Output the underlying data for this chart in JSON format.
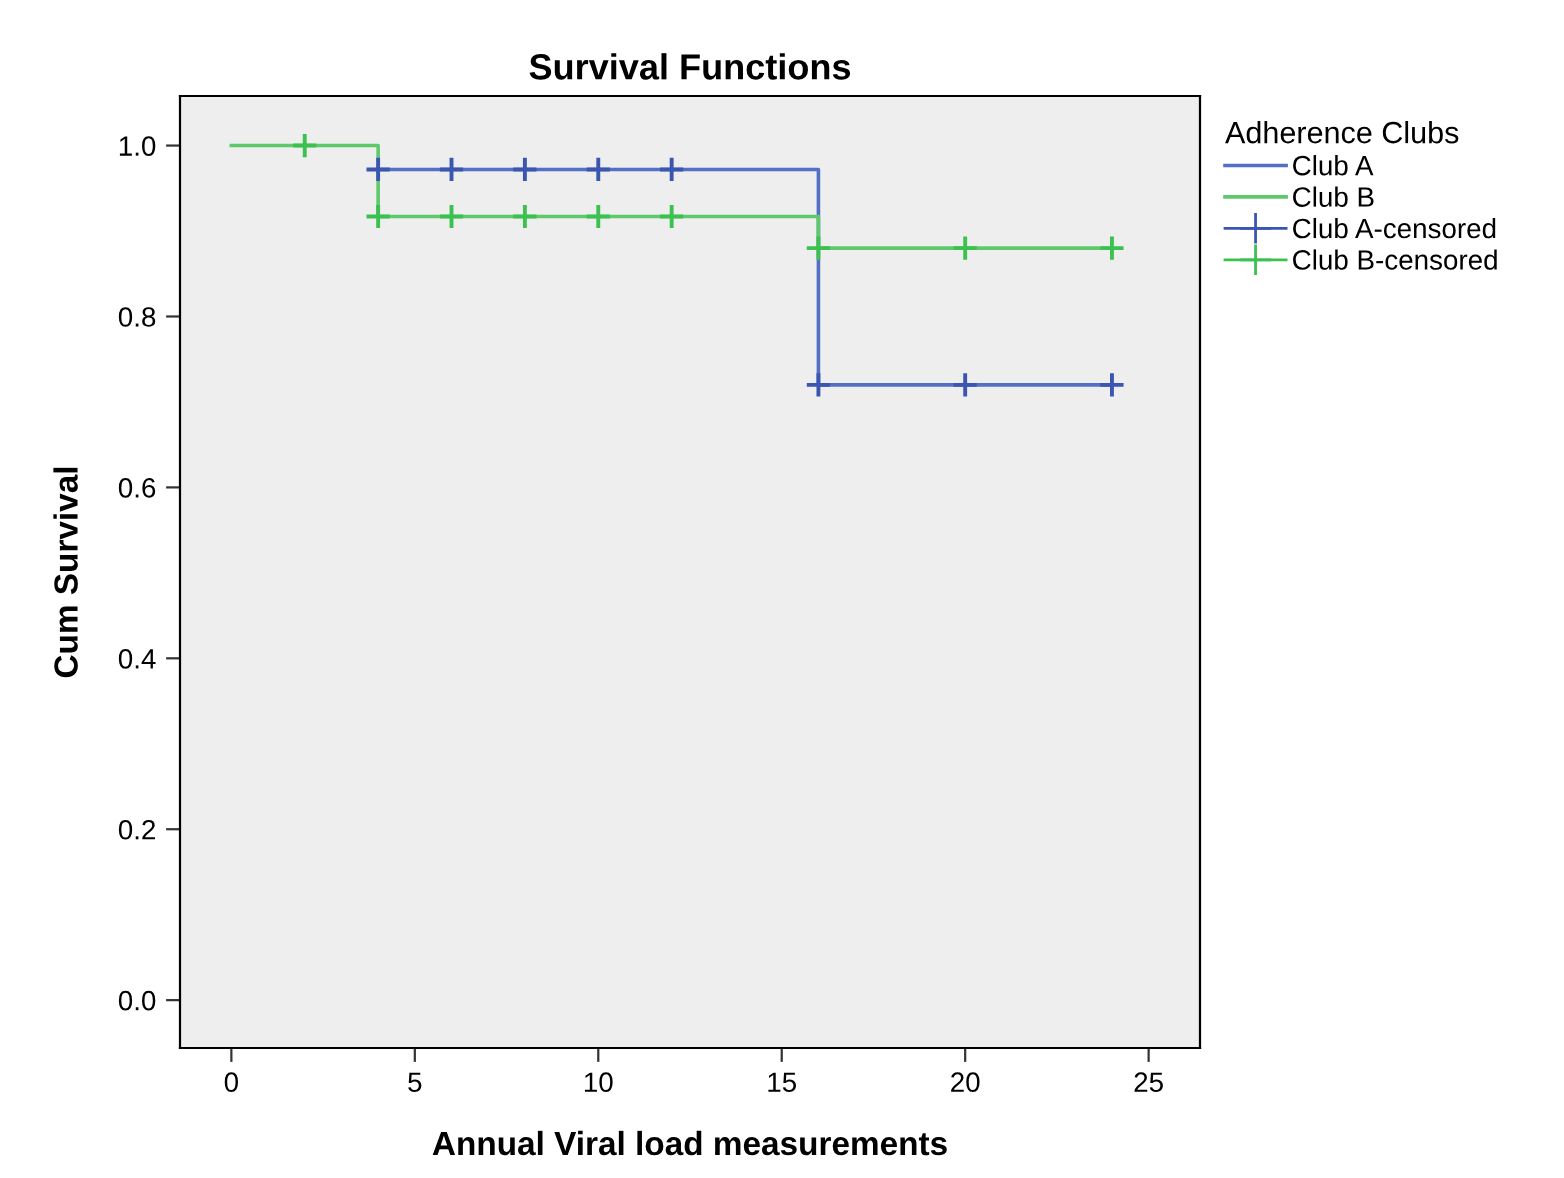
{
  "chart_data": {
    "type": "step",
    "title": "Survival Functions",
    "xlabel": "Annual Viral load measurements",
    "ylabel": "Cum Survival",
    "legend_title": "Adherence Clubs",
    "legend": "right",
    "grid": false,
    "xlim": [
      -1.4,
      26.4
    ],
    "xticks": [
      0,
      5,
      10,
      15,
      20,
      25
    ],
    "ylim": [
      -0.056,
      1.058
    ],
    "yticks": [
      {
        "value": 0,
        "label": "0.0"
      },
      {
        "value": 0.2,
        "label": "0.2"
      },
      {
        "value": 0.4,
        "label": "0.4"
      },
      {
        "value": 0.6,
        "label": "0.6"
      },
      {
        "value": 0.8,
        "label": "0.8"
      },
      {
        "value": 1,
        "label": "1.0"
      }
    ],
    "series": [
      {
        "name": "Club A",
        "color": "#5470c6",
        "x": [
          4,
          16,
          24
        ],
        "values": [
          0.972,
          0.72,
          0.72
        ]
      },
      {
        "name": "Club B",
        "color": "#5ec96b",
        "x": [
          0,
          4,
          16,
          24
        ],
        "values": [
          1.0,
          0.917,
          0.88,
          0.88
        ]
      },
      {
        "name": "Club A-censored",
        "type": "scatter",
        "marker": "cross",
        "color": "#3a56b0",
        "x": [
          4,
          6,
          8,
          10,
          12,
          16,
          20,
          24
        ],
        "values": [
          0.972,
          0.972,
          0.972,
          0.972,
          0.972,
          0.72,
          0.72,
          0.72
        ]
      },
      {
        "name": "Club B-censored",
        "type": "scatter",
        "marker": "cross",
        "color": "#3cc150",
        "x": [
          2,
          4,
          6,
          8,
          10,
          12,
          16,
          20,
          24
        ],
        "values": [
          1.0,
          0.917,
          0.917,
          0.917,
          0.917,
          0.917,
          0.88,
          0.88,
          0.88
        ]
      }
    ]
  }
}
